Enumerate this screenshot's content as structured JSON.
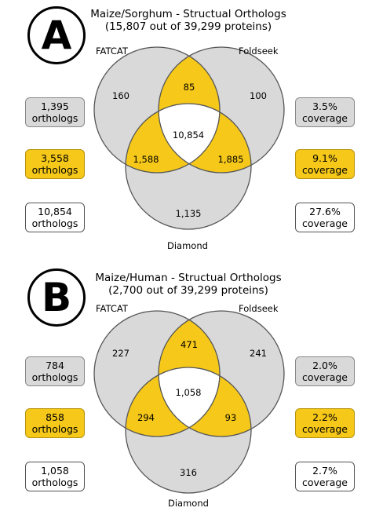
{
  "colors": {
    "grey": "#d9d9d9",
    "yellow": "#f5c81a",
    "stroke": "#555555"
  },
  "panels": [
    {
      "letter": "A",
      "title_line1": "Maize/Sorghum - Structual Orthologs",
      "title_line2": "(15,807 out of 39,299 proteins)",
      "sets": {
        "left": "FATCAT",
        "right": "Foldseek",
        "bottom": "Diamond"
      },
      "regions": {
        "left_only": "160",
        "right_only": "100",
        "bottom_only": "1,135",
        "left_right": "85",
        "left_bottom": "1,588",
        "right_bottom": "1,885",
        "center": "10,854"
      },
      "left_boxes": [
        {
          "line1": "1,395",
          "line2": "orthologs"
        },
        {
          "line1": "3,558",
          "line2": "orthologs"
        },
        {
          "line1": "10,854",
          "line2": "orthologs"
        }
      ],
      "right_boxes": [
        {
          "line1": "3.5%",
          "line2": "coverage"
        },
        {
          "line1": "9.1%",
          "line2": "coverage"
        },
        {
          "line1": "27.6%",
          "line2": "coverage"
        }
      ]
    },
    {
      "letter": "B",
      "title_line1": "Maize/Human - Structual Orthologs",
      "title_line2": "(2,700 out of 39,299 proteins)",
      "sets": {
        "left": "FATCAT",
        "right": "Foldseek",
        "bottom": "Diamond"
      },
      "regions": {
        "left_only": "227",
        "right_only": "241",
        "bottom_only": "316",
        "left_right": "471",
        "left_bottom": "294",
        "right_bottom": "93",
        "center": "1,058"
      },
      "left_boxes": [
        {
          "line1": "784",
          "line2": "orthologs"
        },
        {
          "line1": "858",
          "line2": "orthologs"
        },
        {
          "line1": "1,058",
          "line2": "orthologs"
        }
      ],
      "right_boxes": [
        {
          "line1": "2.0%",
          "line2": "coverage"
        },
        {
          "line1": "2.2%",
          "line2": "coverage"
        },
        {
          "line1": "2.7%",
          "line2": "coverage"
        }
      ]
    }
  ]
}
